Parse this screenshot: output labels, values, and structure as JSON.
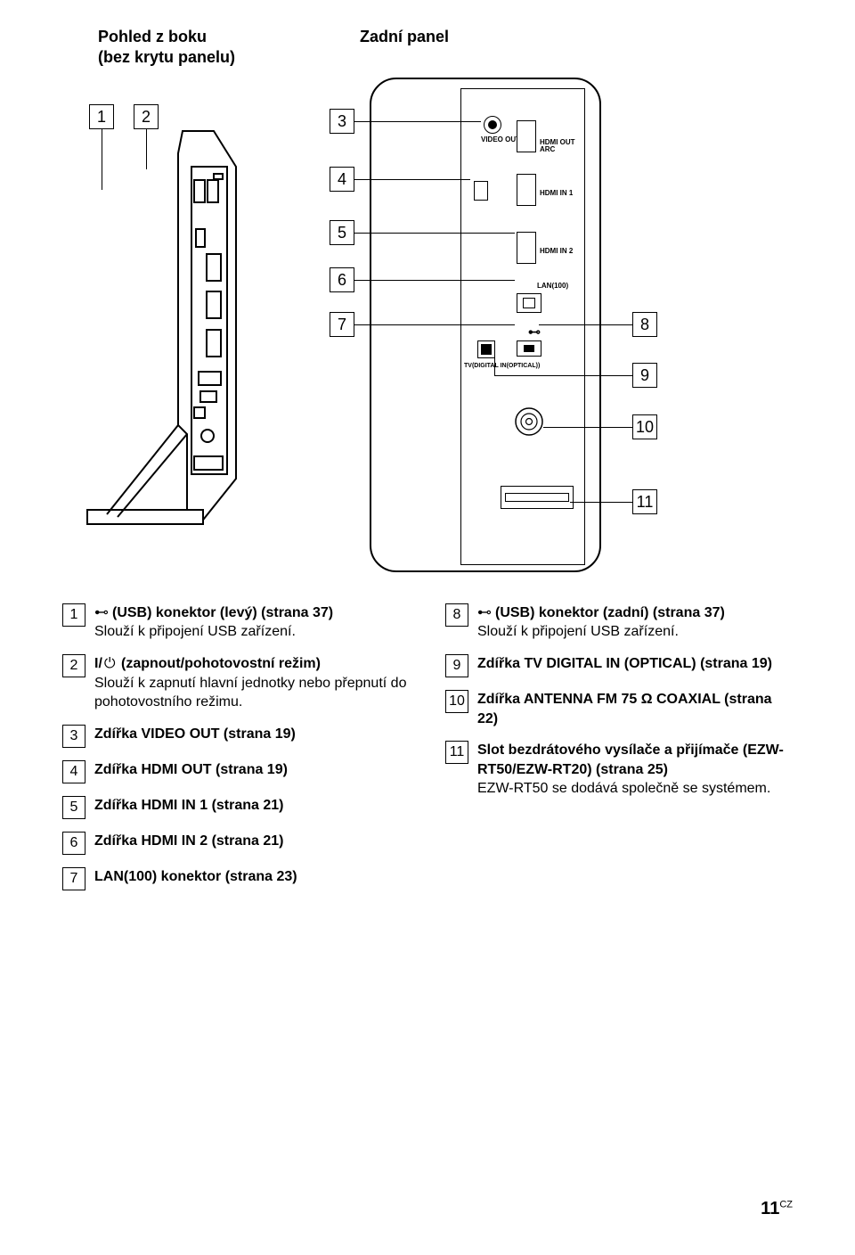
{
  "titles": {
    "left_line1": "Pohled z boku",
    "left_line2": "(bez krytu panelu)",
    "right": "Zadní panel"
  },
  "diagram": {
    "side_callouts": [
      "1",
      "2"
    ],
    "left_callouts": [
      "3",
      "4",
      "5",
      "6",
      "7"
    ],
    "right_callouts": [
      "8",
      "9",
      "10",
      "11"
    ],
    "port_labels": {
      "video_out": "VIDEO\nOUT",
      "hdmi_out": "HDMI\nOUT\nARC",
      "hdmi_in1": "HDMI\nIN 1",
      "hdmi_in2": "HDMI\nIN 2",
      "lan": "LAN(100)",
      "tv_optical": "TV(DIGITAL IN(OPTICAL))"
    }
  },
  "items_left": [
    {
      "n": "1",
      "title_prefix_icon": "usb",
      "title": "(USB) konektor (levý) (strana 37)",
      "sub": "Slouží k připojení USB zařízení."
    },
    {
      "n": "2",
      "title_prefix_icon": "power",
      "title": "(zapnout/pohotovostní režim)",
      "sub": "Slouží k zapnutí hlavní jednotky nebo přepnutí do pohotovostního režimu."
    },
    {
      "n": "3",
      "title": "Zdířka VIDEO OUT (strana 19)",
      "sub": ""
    },
    {
      "n": "4",
      "title": "Zdířka HDMI OUT (strana 19)",
      "sub": ""
    },
    {
      "n": "5",
      "title": "Zdířka HDMI IN 1 (strana 21)",
      "sub": ""
    },
    {
      "n": "6",
      "title": "Zdířka HDMI IN 2 (strana 21)",
      "sub": ""
    },
    {
      "n": "7",
      "title": "LAN(100) konektor (strana 23)",
      "sub": ""
    }
  ],
  "items_right": [
    {
      "n": "8",
      "title_prefix_icon": "usb",
      "title": "(USB) konektor (zadní) (strana 37)",
      "sub": "Slouží k připojení USB zařízení."
    },
    {
      "n": "9",
      "title": "Zdířka TV DIGITAL IN (OPTICAL) (strana 19)",
      "sub": ""
    },
    {
      "n": "10",
      "title": "Zdířka ANTENNA FM 75 Ω COAXIAL (strana 22)",
      "sub": ""
    },
    {
      "n": "11",
      "title": "Slot bezdrátového vysílače a přijímače (EZW-RT50/EZW-RT20) (strana 25)",
      "sub": "EZW-RT50 se dodává společně se systémem."
    }
  ],
  "page_number": "11",
  "page_suffix": "CZ"
}
